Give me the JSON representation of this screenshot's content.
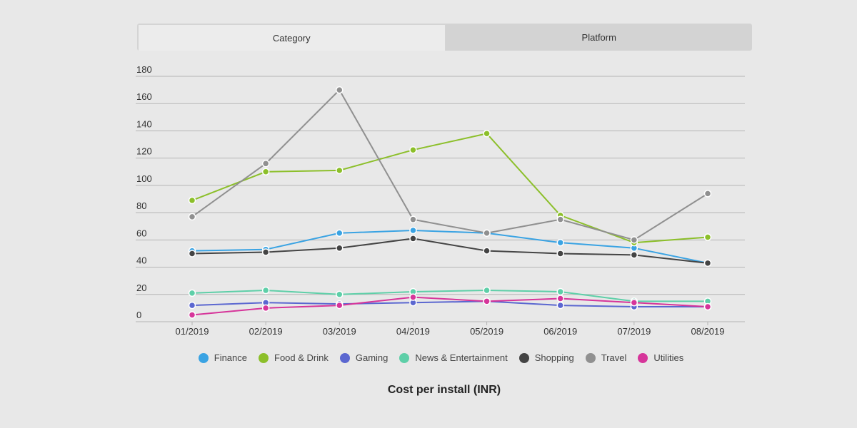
{
  "tabs": [
    {
      "label": "Category",
      "active": true
    },
    {
      "label": "Platform",
      "active": false
    }
  ],
  "chart_data": {
    "type": "line",
    "title": "Cost per install (INR)",
    "xlabel": "",
    "ylabel": "",
    "ylim": [
      0,
      180
    ],
    "yticks": [
      0,
      20,
      40,
      60,
      80,
      100,
      120,
      140,
      160,
      180
    ],
    "grid": true,
    "legend_position": "bottom",
    "categories": [
      "01/2019",
      "02/2019",
      "03/2019",
      "04/2019",
      "05/2019",
      "06/2019",
      "07/2019",
      "08/2019"
    ],
    "series": [
      {
        "name": "Finance",
        "color": "#3aa3e3",
        "values": [
          52,
          53,
          65,
          67,
          65,
          58,
          54,
          43
        ]
      },
      {
        "name": "Food & Drink",
        "color": "#8cbf2a",
        "values": [
          89,
          110,
          111,
          126,
          138,
          78,
          58,
          62
        ]
      },
      {
        "name": "Gaming",
        "color": "#5b67d0",
        "values": [
          12,
          14,
          13,
          14,
          15,
          12,
          11,
          11
        ]
      },
      {
        "name": "News & Entertainment",
        "color": "#5ecfa8",
        "values": [
          21,
          23,
          20,
          22,
          23,
          22,
          15,
          15
        ]
      },
      {
        "name": "Shopping",
        "color": "#444444",
        "values": [
          50,
          51,
          54,
          61,
          52,
          50,
          49,
          43
        ]
      },
      {
        "name": "Travel",
        "color": "#909090",
        "values": [
          77,
          116,
          170,
          75,
          65,
          75,
          60,
          94
        ]
      },
      {
        "name": "Utilities",
        "color": "#d6359a",
        "values": [
          5,
          10,
          12,
          18,
          15,
          17,
          14,
          11
        ]
      }
    ]
  }
}
